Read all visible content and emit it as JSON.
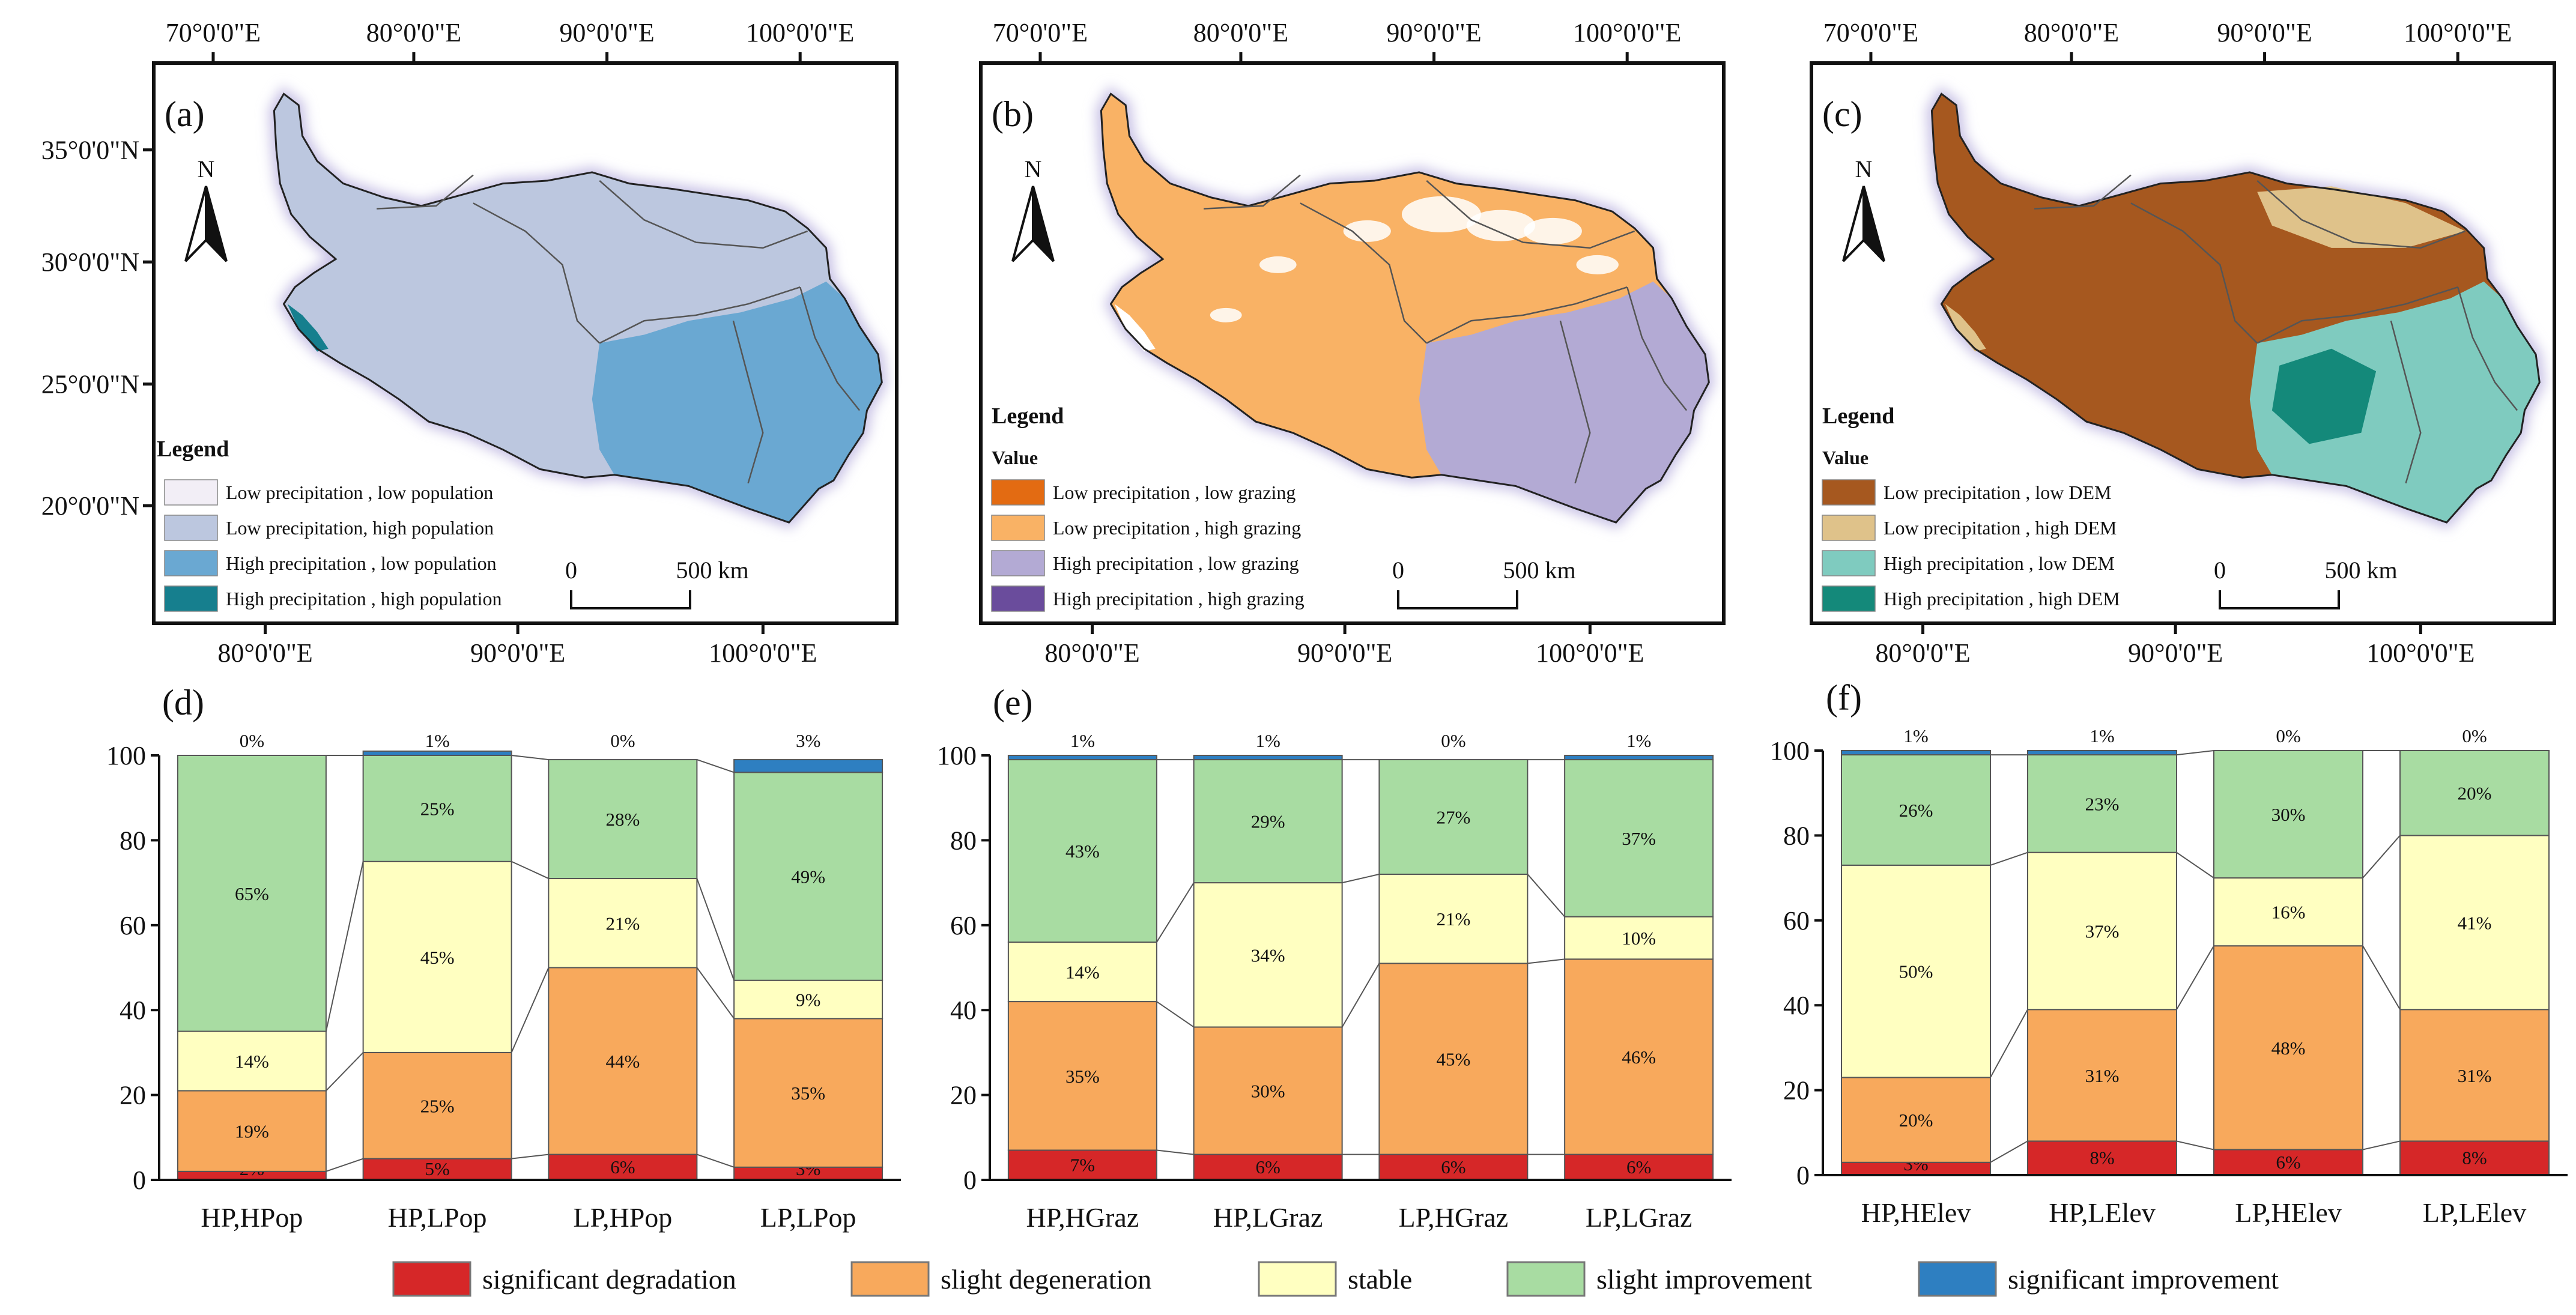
{
  "maps": [
    {
      "letter": "(a)",
      "top_ticks": [
        "70°0'0\"E",
        "80°0'0\"E",
        "90°0'0\"E",
        "100°0'0\"E"
      ],
      "bottom_ticks": [
        "80°0'0\"E",
        "90°0'0\"E",
        "100°0'0\"E"
      ],
      "left_ticks": [
        "35°0'0\"N",
        "30°0'0\"N",
        "25°0'0\"N",
        "20°0'0\"N"
      ],
      "legend_title": "Legend",
      "legend_subtitle": "",
      "legend_items": [
        {
          "label": "Low precipitation , low population",
          "color": "#f2eef6"
        },
        {
          "label": "Low precipitation, high population",
          "color": "#bcc7df"
        },
        {
          "label": "High precipitation ,  low population",
          "color": "#6aa8d2"
        },
        {
          "label": "High precipitation ,  high population",
          "color": "#167f8e"
        }
      ],
      "base_color": "#bcc7df",
      "south_color": "#6aa8d2",
      "patch_color": "#167f8e",
      "scale": {
        "zero": "0",
        "dist": "500 km"
      },
      "north": "N"
    },
    {
      "letter": "(b)",
      "top_ticks": [
        "70°0'0\"E",
        "80°0'0\"E",
        "90°0'0\"E",
        "100°0'0\"E"
      ],
      "bottom_ticks": [
        "80°0'0\"E",
        "90°0'0\"E",
        "100°0'0\"E"
      ],
      "left_ticks": [],
      "legend_title": "Legend",
      "legend_subtitle": "Value",
      "legend_items": [
        {
          "label": "Low precipitation ,  low grazing",
          "color": "#e36b12"
        },
        {
          "label": "Low precipitation , high grazing",
          "color": "#f9b265"
        },
        {
          "label": "High precipitation , low grazing",
          "color": "#b3aad4"
        },
        {
          "label": "High precipitation , high grazing",
          "color": "#6a4c9c"
        }
      ],
      "base_color": "#f9b265",
      "south_color": "#b3aad4",
      "patch_color": "#ffffff",
      "scale": {
        "zero": "0",
        "dist": "500 km"
      },
      "north": "N"
    },
    {
      "letter": "(c)",
      "top_ticks": [
        "70°0'0\"E",
        "80°0'0\"E",
        "90°0'0\"E",
        "100°0'0\"E"
      ],
      "bottom_ticks": [
        "80°0'0\"E",
        "90°0'0\"E",
        "100°0'0\"E"
      ],
      "left_ticks": [],
      "legend_title": "Legend",
      "legend_subtitle": "Value",
      "legend_items": [
        {
          "label": "Low precipitation ,  low DEM",
          "color": "#a6581f"
        },
        {
          "label": "Low precipitation ,  high DEM",
          "color": "#dfc28a"
        },
        {
          "label": "High precipitation ,  low DEM",
          "color": "#7fcbbf"
        },
        {
          "label": "High precipitation ,  high DEM",
          "color": "#14897a"
        }
      ],
      "base_color": "#a6581f",
      "south_color": "#7fcbbf",
      "patch_color": "#dfc28a",
      "scale": {
        "zero": "0",
        "dist": "500 km"
      },
      "north": "N"
    }
  ],
  "chart_data": [
    {
      "type": "bar",
      "stacked": true,
      "title": "(d)",
      "categories": [
        "HP,HPop",
        "HP,LPop",
        "LP,HPop",
        "LP,LPop"
      ],
      "ylim": [
        0,
        100
      ],
      "yticks": [
        0,
        20,
        40,
        60,
        80,
        100
      ],
      "series": [
        {
          "name": "significant degradation",
          "values": [
            2,
            5,
            6,
            3
          ],
          "labels": [
            "2%",
            "5%",
            "6%",
            "3%"
          ]
        },
        {
          "name": "slight degeneration",
          "values": [
            19,
            25,
            44,
            35
          ],
          "labels": [
            "19%",
            "25%",
            "44%",
            "35%"
          ]
        },
        {
          "name": "stable",
          "values": [
            14,
            45,
            21,
            9
          ],
          "labels": [
            "14%",
            "45%",
            "21%",
            "9%"
          ]
        },
        {
          "name": "slight improvement",
          "values": [
            65,
            25,
            28,
            49
          ],
          "labels": [
            "65%",
            "25%",
            "28%",
            "49%"
          ]
        },
        {
          "name": "significant improvement",
          "values": [
            0,
            1,
            0,
            3
          ],
          "labels": [
            "0%",
            "1%",
            "0%",
            "3%"
          ]
        }
      ]
    },
    {
      "type": "bar",
      "stacked": true,
      "title": "(e)",
      "categories": [
        "HP,HGraz",
        "HP,LGraz",
        "LP,HGraz",
        "LP,LGraz"
      ],
      "ylim": [
        0,
        100
      ],
      "yticks": [
        0,
        20,
        40,
        60,
        80,
        100
      ],
      "series": [
        {
          "name": "significant degradation",
          "values": [
            7,
            6,
            6,
            6
          ],
          "labels": [
            "7%",
            "6%",
            "6%",
            "6%"
          ]
        },
        {
          "name": "slight degeneration",
          "values": [
            35,
            30,
            45,
            46
          ],
          "labels": [
            "35%",
            "30%",
            "45%",
            "46%"
          ]
        },
        {
          "name": "stable",
          "values": [
            14,
            34,
            21,
            10
          ],
          "labels": [
            "14%",
            "34%",
            "21%",
            "10%"
          ]
        },
        {
          "name": "slight improvement",
          "values": [
            43,
            29,
            27,
            37
          ],
          "labels": [
            "43%",
            "29%",
            "27%",
            "37%"
          ]
        },
        {
          "name": "significant improvement",
          "values": [
            1,
            1,
            0,
            1
          ],
          "labels": [
            "1%",
            "1%",
            "0%",
            "1%"
          ]
        }
      ]
    },
    {
      "type": "bar",
      "stacked": true,
      "title": "(f)",
      "categories": [
        "HP,HElev",
        "HP,LElev",
        "LP,HElev",
        "LP,LElev"
      ],
      "ylim": [
        0,
        100
      ],
      "yticks": [
        0,
        20,
        40,
        60,
        80,
        100
      ],
      "series": [
        {
          "name": "significant degradation",
          "values": [
            3,
            8,
            6,
            8
          ],
          "labels": [
            "3%",
            "8%",
            "6%",
            "8%"
          ]
        },
        {
          "name": "slight degeneration",
          "values": [
            20,
            31,
            48,
            31
          ],
          "labels": [
            "20%",
            "31%",
            "48%",
            "31%"
          ]
        },
        {
          "name": "stable",
          "values": [
            50,
            37,
            16,
            41
          ],
          "labels": [
            "50%",
            "37%",
            "16%",
            "41%"
          ]
        },
        {
          "name": "slight improvement",
          "values": [
            26,
            23,
            30,
            20
          ],
          "labels": [
            "26%",
            "23%",
            "30%",
            "20%"
          ]
        },
        {
          "name": "significant improvement",
          "values": [
            1,
            1,
            0,
            0
          ],
          "labels": [
            "1%",
            "1%",
            "0%",
            "0%"
          ]
        }
      ]
    }
  ],
  "legend": [
    {
      "name": "significant degradation",
      "color": "#d62728"
    },
    {
      "name": "slight degeneration",
      "color": "#f8a95c"
    },
    {
      "name": "stable",
      "color": "#ffffc1"
    },
    {
      "name": "slight improvement",
      "color": "#a8dca2"
    },
    {
      "name": "significant improvement",
      "color": "#2e7fc1"
    }
  ]
}
